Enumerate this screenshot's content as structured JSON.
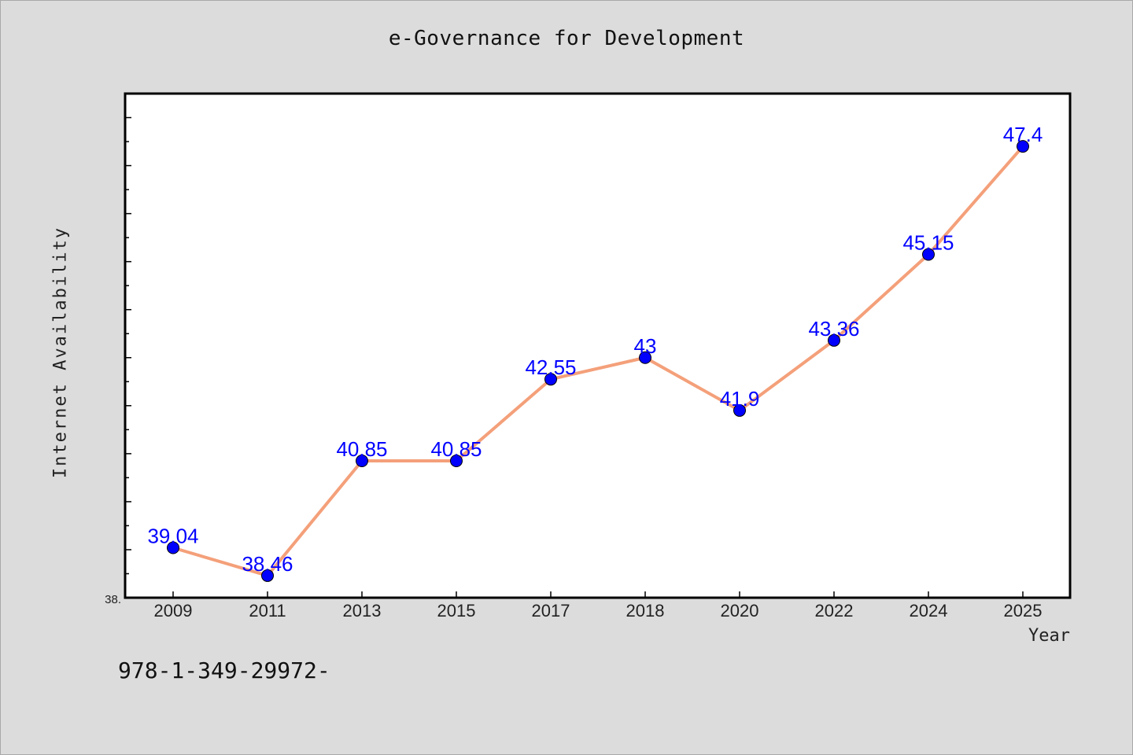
{
  "chart_data": {
    "type": "line",
    "title": "e-Governance for Development",
    "xlabel": "Year",
    "ylabel": "Internet Availability",
    "categories": [
      "2009",
      "2011",
      "2013",
      "2015",
      "2017",
      "2018",
      "2020",
      "2022",
      "2024",
      "2025"
    ],
    "series": [
      {
        "values": [
          39.04,
          38.46,
          40.85,
          40.85,
          42.55,
          43,
          41.9,
          43.36,
          45.15,
          47.4
        ]
      }
    ],
    "data_labels": [
      "39.04",
      "38.46",
      "40.85",
      "40.85",
      "42.55",
      "43",
      "41.9",
      "43.36",
      "45.15",
      "47.4"
    ],
    "ylim": [
      38.0,
      48.5
    ],
    "ytick_label": "38.",
    "grid": false,
    "line_color": "#f4a07a",
    "marker_color": "#0000ff",
    "label_color": "#0000ff",
    "plot_background": "#ffffff",
    "page_background": "#dcdcdc"
  },
  "footer": {
    "isbn": "978-1-349-29972-"
  }
}
